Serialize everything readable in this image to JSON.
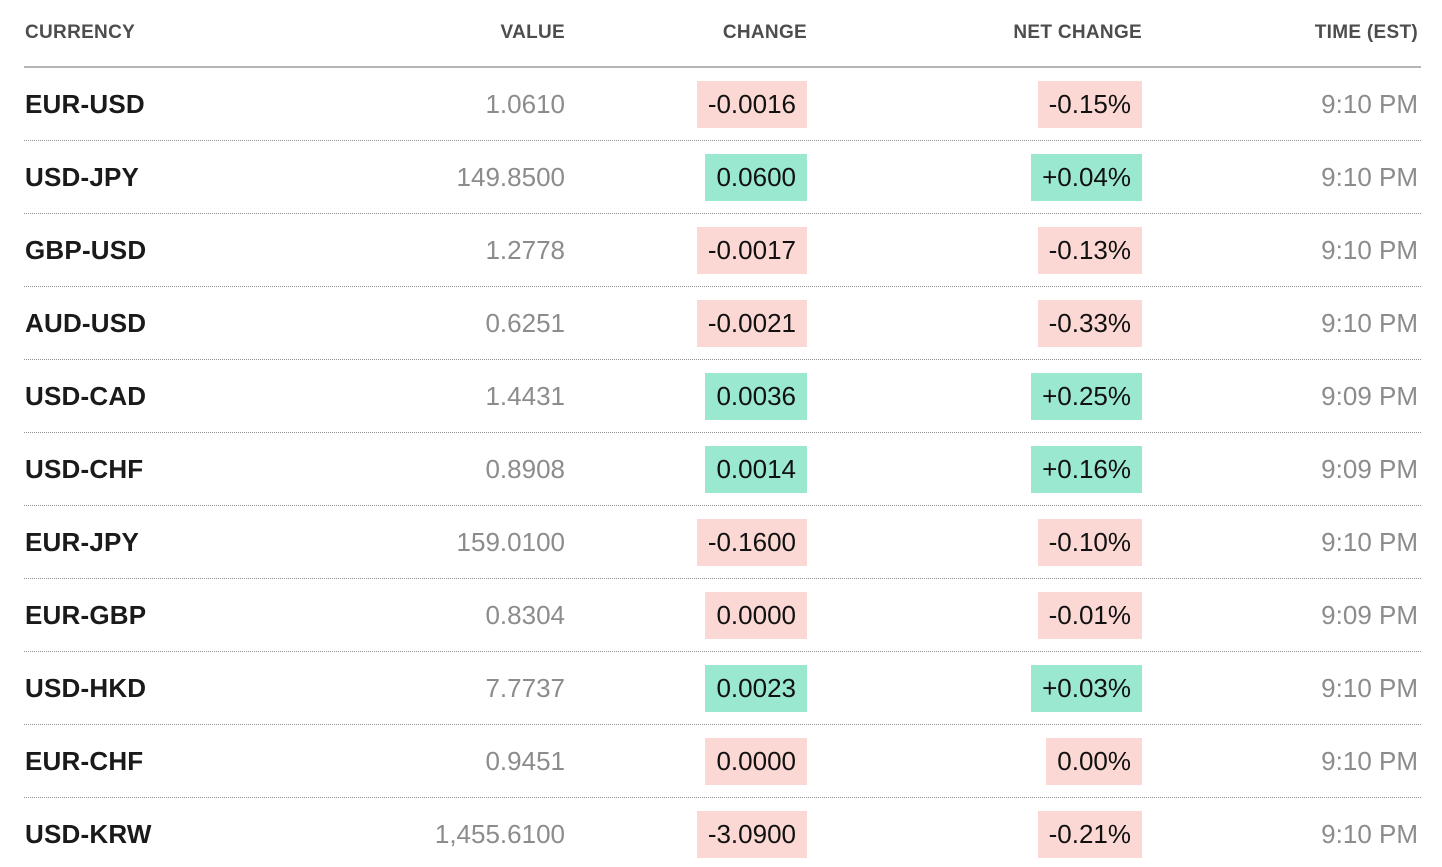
{
  "table": {
    "columns": [
      {
        "id": "currency",
        "label": "CURRENCY",
        "align": "left"
      },
      {
        "id": "value",
        "label": "VALUE",
        "align": "right"
      },
      {
        "id": "change",
        "label": "CHANGE",
        "align": "right"
      },
      {
        "id": "net_change",
        "label": "NET CHANGE",
        "align": "right"
      },
      {
        "id": "time",
        "label": "TIME (EST)",
        "align": "right"
      }
    ],
    "rows": [
      {
        "currency": "EUR-USD",
        "value": "1.0610",
        "change": "-0.0016",
        "change_positive": false,
        "net_change": "-0.15%",
        "net_change_positive": false,
        "time": "9:10 PM"
      },
      {
        "currency": "USD-JPY",
        "value": "149.8500",
        "change": "0.0600",
        "change_positive": true,
        "net_change": "+0.04%",
        "net_change_positive": true,
        "time": "9:10 PM"
      },
      {
        "currency": "GBP-USD",
        "value": "1.2778",
        "change": "-0.0017",
        "change_positive": false,
        "net_change": "-0.13%",
        "net_change_positive": false,
        "time": "9:10 PM"
      },
      {
        "currency": "AUD-USD",
        "value": "0.6251",
        "change": "-0.0021",
        "change_positive": false,
        "net_change": "-0.33%",
        "net_change_positive": false,
        "time": "9:10 PM"
      },
      {
        "currency": "USD-CAD",
        "value": "1.4431",
        "change": "0.0036",
        "change_positive": true,
        "net_change": "+0.25%",
        "net_change_positive": true,
        "time": "9:09 PM"
      },
      {
        "currency": "USD-CHF",
        "value": "0.8908",
        "change": "0.0014",
        "change_positive": true,
        "net_change": "+0.16%",
        "net_change_positive": true,
        "time": "9:09 PM"
      },
      {
        "currency": "EUR-JPY",
        "value": "159.0100",
        "change": "-0.1600",
        "change_positive": false,
        "net_change": "-0.10%",
        "net_change_positive": false,
        "time": "9:10 PM"
      },
      {
        "currency": "EUR-GBP",
        "value": "0.8304",
        "change": "0.0000",
        "change_positive": false,
        "net_change": "-0.01%",
        "net_change_positive": false,
        "time": "9:09 PM"
      },
      {
        "currency": "USD-HKD",
        "value": "7.7737",
        "change": "0.0023",
        "change_positive": true,
        "net_change": "+0.03%",
        "net_change_positive": true,
        "time": "9:10 PM"
      },
      {
        "currency": "EUR-CHF",
        "value": "0.9451",
        "change": "0.0000",
        "change_positive": false,
        "net_change": "0.00%",
        "net_change_positive": false,
        "time": "9:10 PM"
      },
      {
        "currency": "USD-KRW",
        "value": "1,455.6100",
        "change": "-3.0900",
        "change_positive": false,
        "net_change": "-0.21%",
        "net_change_positive": false,
        "time": "9:10 PM"
      }
    ]
  },
  "colors": {
    "positive_chip_bg": "#9ae8d0",
    "negative_chip_bg": "#fbd8d4",
    "chip_text": "#111111",
    "currency_text": "#1a1a1a",
    "muted_text": "#8c8c8c",
    "header_text": "#4d4d4d",
    "header_rule": "#b5b5b5",
    "row_divider": "#8f8f8f",
    "page_bg": "#ffffff"
  },
  "chart_data": {
    "type": "table",
    "columns": [
      "CURRENCY",
      "VALUE",
      "CHANGE",
      "NET CHANGE",
      "TIME (EST)"
    ],
    "rows": [
      [
        "EUR-USD",
        "1.0610",
        "-0.0016",
        "-0.15%",
        "9:10 PM"
      ],
      [
        "USD-JPY",
        "149.8500",
        "0.0600",
        "+0.04%",
        "9:10 PM"
      ],
      [
        "GBP-USD",
        "1.2778",
        "-0.0017",
        "-0.13%",
        "9:10 PM"
      ],
      [
        "AUD-USD",
        "0.6251",
        "-0.0021",
        "-0.33%",
        "9:10 PM"
      ],
      [
        "USD-CAD",
        "1.4431",
        "0.0036",
        "+0.25%",
        "9:09 PM"
      ],
      [
        "USD-CHF",
        "0.8908",
        "0.0014",
        "+0.16%",
        "9:09 PM"
      ],
      [
        "EUR-JPY",
        "159.0100",
        "-0.1600",
        "-0.10%",
        "9:10 PM"
      ],
      [
        "EUR-GBP",
        "0.8304",
        "0.0000",
        "-0.01%",
        "9:09 PM"
      ],
      [
        "USD-HKD",
        "7.7737",
        "0.0023",
        "+0.03%",
        "9:10 PM"
      ],
      [
        "EUR-CHF",
        "0.9451",
        "0.0000",
        "0.00%",
        "9:10 PM"
      ],
      [
        "USD-KRW",
        "1,455.6100",
        "-3.0900",
        "-0.21%",
        "9:10 PM"
      ]
    ],
    "legend_position": "none",
    "grid": "dotted-row-dividers"
  }
}
